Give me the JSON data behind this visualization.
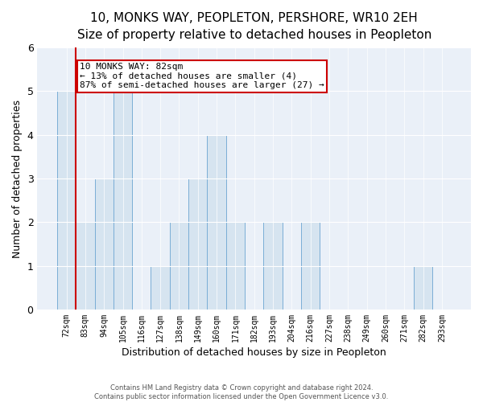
{
  "title": "10, MONKS WAY, PEOPLETON, PERSHORE, WR10 2EH",
  "subtitle": "Size of property relative to detached houses in Peopleton",
  "xlabel": "Distribution of detached houses by size in Peopleton",
  "ylabel": "Number of detached properties",
  "categories": [
    "72sqm",
    "83sqm",
    "94sqm",
    "105sqm",
    "116sqm",
    "127sqm",
    "138sqm",
    "149sqm",
    "160sqm",
    "171sqm",
    "182sqm",
    "193sqm",
    "204sqm",
    "216sqm",
    "227sqm",
    "238sqm",
    "249sqm",
    "260sqm",
    "271sqm",
    "282sqm",
    "293sqm"
  ],
  "values": [
    5,
    2,
    3,
    5,
    0,
    1,
    2,
    3,
    4,
    2,
    0,
    2,
    0,
    2,
    0,
    0,
    0,
    0,
    0,
    1,
    0
  ],
  "bar_color": "#d6e4f0",
  "bar_edge_color": "#7aaed6",
  "property_line_bin": 0,
  "annotation_text": "10 MONKS WAY: 82sqm\n← 13% of detached houses are smaller (4)\n87% of semi-detached houses are larger (27) →",
  "annotation_box_color": "#ffffff",
  "annotation_box_edge_color": "#cc0000",
  "red_line_color": "#cc0000",
  "ylim": [
    0,
    6
  ],
  "yticks": [
    0,
    1,
    2,
    3,
    4,
    5,
    6
  ],
  "footer_line1": "Contains HM Land Registry data © Crown copyright and database right 2024.",
  "footer_line2": "Contains public sector information licensed under the Open Government Licence v3.0.",
  "background_color": "#ffffff",
  "plot_background_color": "#eaf0f8",
  "title_fontsize": 11,
  "xlabel_fontsize": 9,
  "ylabel_fontsize": 9,
  "annotation_fontsize": 8,
  "tick_fontsize": 7,
  "footer_fontsize": 6
}
